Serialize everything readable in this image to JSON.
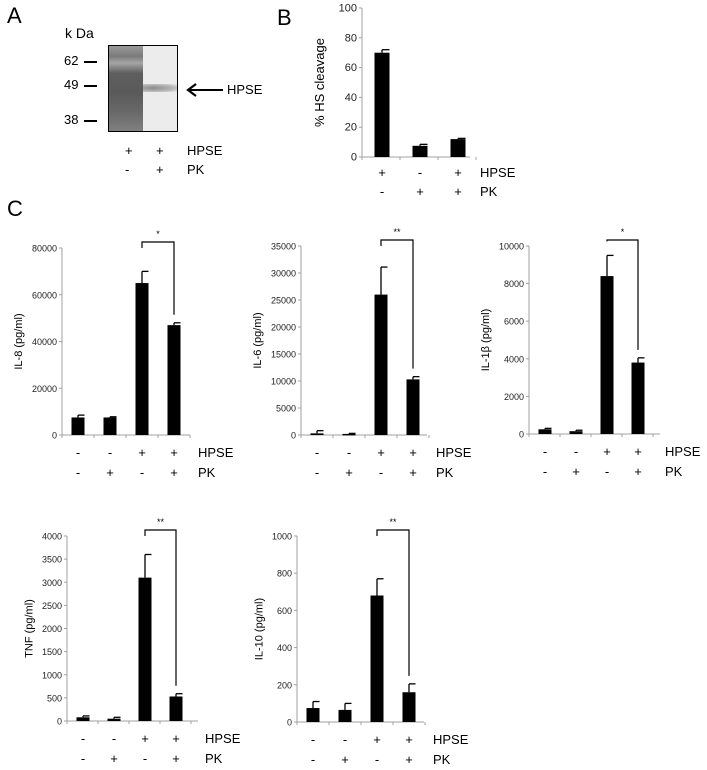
{
  "panel_labels": [
    "A",
    "B",
    "C"
  ],
  "panel_a": {
    "unit_label": "k Da",
    "markers": [
      {
        "label": "62",
        "y": 61
      },
      {
        "label": "49",
        "y": 85
      },
      {
        "label": "38",
        "y": 120
      }
    ],
    "arrow_label": "HPSE",
    "conditions": {
      "row_labels": [
        "HPSE",
        "PK"
      ],
      "rows": [
        [
          "+",
          "+"
        ],
        [
          "-",
          "+"
        ]
      ]
    }
  },
  "chart_data": [
    {
      "id": "B",
      "type": "bar",
      "title": "",
      "xlabel": "",
      "ylabel": "% HS cleavage",
      "ylim": [
        0,
        100
      ],
      "yticks": [
        0,
        20,
        40,
        60,
        80,
        100
      ],
      "grid": false,
      "categories": [
        "HPSE+ PK-",
        "HPSE- PK+",
        "HPSE+ PK+"
      ],
      "values": [
        70,
        7.5,
        12
      ],
      "errors": [
        2,
        1,
        0.5
      ],
      "condition_rows": {
        "HPSE": [
          "+",
          "-",
          "+"
        ],
        "PK": [
          "-",
          "+",
          "+"
        ]
      },
      "significance": null
    },
    {
      "id": "C-IL8",
      "type": "bar",
      "title": "",
      "xlabel": "",
      "ylabel": "IL-8 (pg/ml)",
      "ylim": [
        0,
        80000
      ],
      "yticks": [
        0,
        20000,
        40000,
        60000,
        80000
      ],
      "grid": false,
      "categories": [
        "HPSE- PK-",
        "HPSE- PK+",
        "HPSE+ PK-",
        "HPSE+ PK+"
      ],
      "values": [
        7500,
        7500,
        65000,
        47000
      ],
      "errors": [
        1000,
        300,
        5000,
        1000
      ],
      "condition_rows": {
        "HPSE": [
          "-",
          "-",
          "+",
          "+"
        ],
        "PK": [
          "-",
          "+",
          "-",
          "+"
        ]
      },
      "significance": {
        "from": 2,
        "to": 3,
        "label": "*"
      }
    },
    {
      "id": "C-IL6",
      "type": "bar",
      "title": "",
      "xlabel": "",
      "ylabel": "IL-6 (pg/ml)",
      "ylim": [
        0,
        35000
      ],
      "yticks": [
        0,
        5000,
        10000,
        15000,
        20000,
        25000,
        30000,
        35000
      ],
      "grid": false,
      "categories": [
        "HPSE- PK-",
        "HPSE- PK+",
        "HPSE+ PK-",
        "HPSE+ PK+"
      ],
      "values": [
        300,
        200,
        26000,
        10300
      ],
      "errors": [
        500,
        100,
        5100,
        500
      ],
      "condition_rows": {
        "HPSE": [
          "-",
          "-",
          "+",
          "+"
        ],
        "PK": [
          "-",
          "+",
          "-",
          "+"
        ]
      },
      "significance": {
        "from": 2,
        "to": 3,
        "label": "**"
      }
    },
    {
      "id": "C-IL1B",
      "type": "bar",
      "title": "",
      "xlabel": "",
      "ylabel": "IL-1β (pg/ml)",
      "ylim": [
        0,
        10000
      ],
      "yticks": [
        0,
        2000,
        4000,
        6000,
        8000,
        10000
      ],
      "grid": false,
      "categories": [
        "HPSE- PK-",
        "HPSE- PK+",
        "HPSE+ PK-",
        "HPSE+ PK+"
      ],
      "values": [
        250,
        150,
        8400,
        3800
      ],
      "errors": [
        50,
        50,
        1100,
        250
      ],
      "condition_rows": {
        "HPSE": [
          "-",
          "-",
          "+",
          "+"
        ],
        "PK": [
          "-",
          "+",
          "-",
          "+"
        ]
      },
      "significance": {
        "from": 2,
        "to": 3,
        "label": "*"
      }
    },
    {
      "id": "C-TNF",
      "type": "bar",
      "title": "",
      "xlabel": "",
      "ylabel": "TNF (pg/ml)",
      "ylim": [
        0,
        4000
      ],
      "yticks": [
        0,
        500,
        1000,
        1500,
        2000,
        2500,
        3000,
        3500,
        4000
      ],
      "grid": false,
      "categories": [
        "HPSE- PK-",
        "HPSE- PK+",
        "HPSE+ PK-",
        "HPSE+ PK+"
      ],
      "values": [
        80,
        50,
        3100,
        530
      ],
      "errors": [
        30,
        30,
        500,
        60
      ],
      "condition_rows": {
        "HPSE": [
          "-",
          "-",
          "+",
          "+"
        ],
        "PK": [
          "-",
          "+",
          "-",
          "+"
        ]
      },
      "significance": {
        "from": 2,
        "to": 3,
        "label": "**"
      }
    },
    {
      "id": "C-IL10",
      "type": "bar",
      "title": "",
      "xlabel": "",
      "ylabel": "IL-10 (pg/ml)",
      "ylim": [
        0,
        1000
      ],
      "yticks": [
        0,
        200,
        400,
        600,
        800,
        1000
      ],
      "grid": false,
      "categories": [
        "HPSE- PK-",
        "HPSE- PK+",
        "HPSE+ PK-",
        "HPSE+ PK+"
      ],
      "values": [
        75,
        65,
        680,
        160
      ],
      "errors": [
        35,
        35,
        90,
        45
      ],
      "condition_rows": {
        "HPSE": [
          "-",
          "-",
          "+",
          "+"
        ],
        "PK": [
          "-",
          "+",
          "-",
          "+"
        ]
      },
      "significance": {
        "from": 2,
        "to": 3,
        "label": "**"
      }
    }
  ]
}
